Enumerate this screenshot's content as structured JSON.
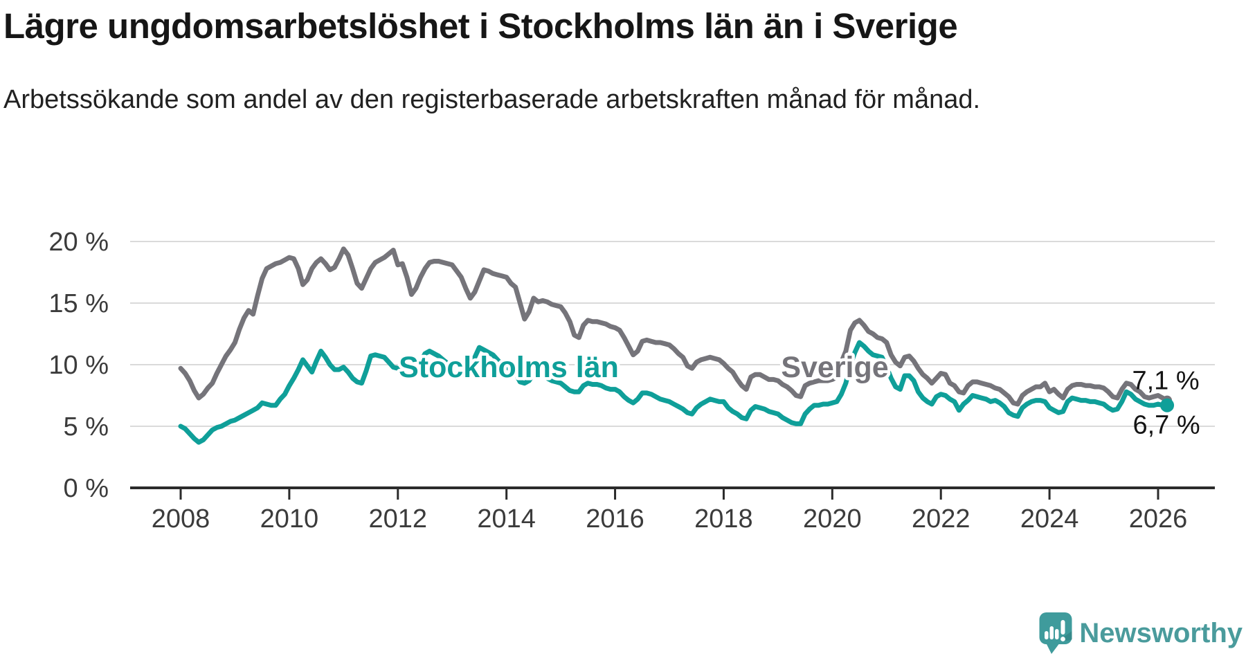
{
  "branding": {
    "logo_text": "Newsworthy",
    "logo_color": "#4a9b9c"
  },
  "chart_data": {
    "type": "line",
    "title": "Lägre ungdomsarbetslöshet i Stockholms län än i Sverige",
    "subtitle": "Arbetssökande som andel av den registerbaserade arbetskraften månad för månad.",
    "xlabel": "",
    "ylabel": "",
    "frequency": "monthly",
    "x_start_year": 2008,
    "x_start_month": 1,
    "x_end_label": "2026-03",
    "ylim": [
      0,
      20.5
    ],
    "grid": "horizontal",
    "axis_color": "#2b2b2b",
    "grid_color": "#dadada",
    "tick_label_color": "#3b3b3b",
    "x_tick_years": [
      2008,
      2010,
      2012,
      2014,
      2016,
      2018,
      2020,
      2022,
      2024,
      2026
    ],
    "y_ticks": [
      {
        "value": 0,
        "label": "0 %"
      },
      {
        "value": 5,
        "label": "5 %"
      },
      {
        "value": 10,
        "label": "10 %"
      },
      {
        "value": 15,
        "label": "15 %"
      },
      {
        "value": 20,
        "label": "20 %"
      }
    ],
    "series": [
      {
        "name": "Sverige",
        "color": "#75747a",
        "end_label": "7,1 %",
        "label": {
          "text": "Sverige",
          "x": 1206,
          "y": 545
        },
        "values": [
          9.7,
          9.3,
          8.7,
          7.9,
          7.3,
          7.6,
          8.1,
          8.5,
          9.3,
          10.0,
          10.7,
          11.2,
          11.8,
          12.9,
          13.8,
          14.4,
          14.1,
          15.6,
          17.0,
          17.8,
          18.0,
          18.2,
          18.3,
          18.5,
          18.7,
          18.6,
          17.8,
          16.5,
          16.9,
          17.8,
          18.3,
          18.6,
          18.2,
          17.7,
          17.9,
          18.6,
          19.4,
          18.9,
          17.8,
          16.6,
          16.2,
          17.0,
          17.8,
          18.3,
          18.5,
          18.7,
          19.0,
          19.3,
          18.1,
          18.2,
          17.1,
          15.7,
          16.2,
          17.1,
          17.8,
          18.3,
          18.4,
          18.4,
          18.3,
          18.2,
          18.1,
          17.6,
          17.1,
          16.2,
          15.4,
          15.9,
          16.8,
          17.7,
          17.6,
          17.4,
          17.3,
          17.2,
          17.1,
          16.6,
          16.3,
          15.0,
          13.7,
          14.3,
          15.4,
          15.1,
          15.2,
          15.1,
          14.9,
          14.8,
          14.7,
          14.2,
          13.5,
          12.4,
          12.2,
          13.2,
          13.6,
          13.5,
          13.5,
          13.4,
          13.3,
          13.1,
          13.0,
          12.8,
          12.2,
          11.5,
          10.8,
          11.1,
          11.9,
          12.0,
          11.9,
          11.8,
          11.8,
          11.7,
          11.6,
          11.3,
          10.9,
          10.6,
          9.9,
          9.7,
          10.2,
          10.4,
          10.5,
          10.6,
          10.5,
          10.4,
          10.1,
          9.7,
          9.4,
          8.8,
          8.3,
          8.0,
          9.0,
          9.2,
          9.2,
          9.0,
          8.8,
          8.8,
          8.7,
          8.4,
          8.2,
          7.9,
          7.5,
          7.4,
          8.3,
          8.5,
          8.6,
          8.7,
          8.7,
          8.7,
          8.8,
          9.0,
          10.2,
          11.1,
          12.8,
          13.4,
          13.6,
          13.2,
          12.7,
          12.5,
          12.2,
          12.1,
          11.8,
          10.8,
          10.2,
          9.9,
          10.6,
          10.7,
          10.3,
          9.7,
          9.2,
          8.9,
          8.5,
          8.9,
          9.3,
          9.2,
          8.5,
          8.3,
          7.8,
          7.7,
          8.3,
          8.6,
          8.6,
          8.5,
          8.4,
          8.3,
          8.1,
          8.0,
          7.7,
          7.4,
          6.9,
          6.8,
          7.5,
          7.8,
          8.0,
          8.2,
          8.2,
          8.5,
          7.8,
          8.0,
          7.6,
          7.3,
          8.0,
          8.3,
          8.4,
          8.4,
          8.3,
          8.3,
          8.2,
          8.2,
          8.1,
          7.8,
          7.4,
          7.3,
          8.0,
          8.5,
          8.4,
          8.0,
          7.8,
          7.4,
          7.3,
          7.4,
          7.5,
          7.3,
          7.1
        ]
      },
      {
        "name": "Stockholms län",
        "color": "#0f9f99",
        "end_label": "6,7 %",
        "label": {
          "text": "Stockholms län",
          "x": 735,
          "y": 545
        },
        "values": [
          5.0,
          4.8,
          4.4,
          4.0,
          3.7,
          3.9,
          4.3,
          4.7,
          4.9,
          5.0,
          5.2,
          5.4,
          5.5,
          5.7,
          5.9,
          6.1,
          6.3,
          6.5,
          6.9,
          6.8,
          6.7,
          6.7,
          7.2,
          7.6,
          8.3,
          8.9,
          9.6,
          10.4,
          9.9,
          9.4,
          10.3,
          11.1,
          10.6,
          10.0,
          9.6,
          9.6,
          9.8,
          9.4,
          8.9,
          8.6,
          8.5,
          9.5,
          10.7,
          10.8,
          10.7,
          10.6,
          10.2,
          9.8,
          9.7,
          9.6,
          9.4,
          9.3,
          9.5,
          10.2,
          10.9,
          11.1,
          10.9,
          10.7,
          10.4,
          10.1,
          10.0,
          9.9,
          9.8,
          9.7,
          9.9,
          10.6,
          11.4,
          11.2,
          11.0,
          10.8,
          10.4,
          10.0,
          9.8,
          9.6,
          9.3,
          8.6,
          8.5,
          8.7,
          9.3,
          9.2,
          9.1,
          8.9,
          8.7,
          8.6,
          8.5,
          8.2,
          7.9,
          7.8,
          7.8,
          8.3,
          8.5,
          8.4,
          8.4,
          8.3,
          8.1,
          8.0,
          8.0,
          7.8,
          7.4,
          7.1,
          6.9,
          7.2,
          7.7,
          7.7,
          7.6,
          7.4,
          7.2,
          7.1,
          7.0,
          6.8,
          6.6,
          6.4,
          6.1,
          6.0,
          6.5,
          6.8,
          7.0,
          7.2,
          7.1,
          7.0,
          7.0,
          6.5,
          6.2,
          6.0,
          5.7,
          5.6,
          6.3,
          6.6,
          6.5,
          6.4,
          6.2,
          6.1,
          6.0,
          5.7,
          5.5,
          5.3,
          5.2,
          5.2,
          6.0,
          6.4,
          6.7,
          6.7,
          6.8,
          6.8,
          6.9,
          7.0,
          7.6,
          8.5,
          10.0,
          11.0,
          11.8,
          11.5,
          11.1,
          10.8,
          10.7,
          10.6,
          9.8,
          8.9,
          8.2,
          8.0,
          9.1,
          9.1,
          8.7,
          7.8,
          7.3,
          7.0,
          6.8,
          7.4,
          7.6,
          7.5,
          7.2,
          7.0,
          6.3,
          6.8,
          7.1,
          7.5,
          7.4,
          7.3,
          7.2,
          7.0,
          7.1,
          6.9,
          6.6,
          6.1,
          5.9,
          5.8,
          6.5,
          6.8,
          7.0,
          7.1,
          7.1,
          7.0,
          6.5,
          6.3,
          6.1,
          6.2,
          7.0,
          7.3,
          7.2,
          7.1,
          7.1,
          7.0,
          7.0,
          6.9,
          6.8,
          6.5,
          6.3,
          6.4,
          7.0,
          7.8,
          7.6,
          7.2,
          7.0,
          6.8,
          6.7,
          6.7,
          6.8,
          6.7,
          6.7
        ]
      }
    ]
  }
}
